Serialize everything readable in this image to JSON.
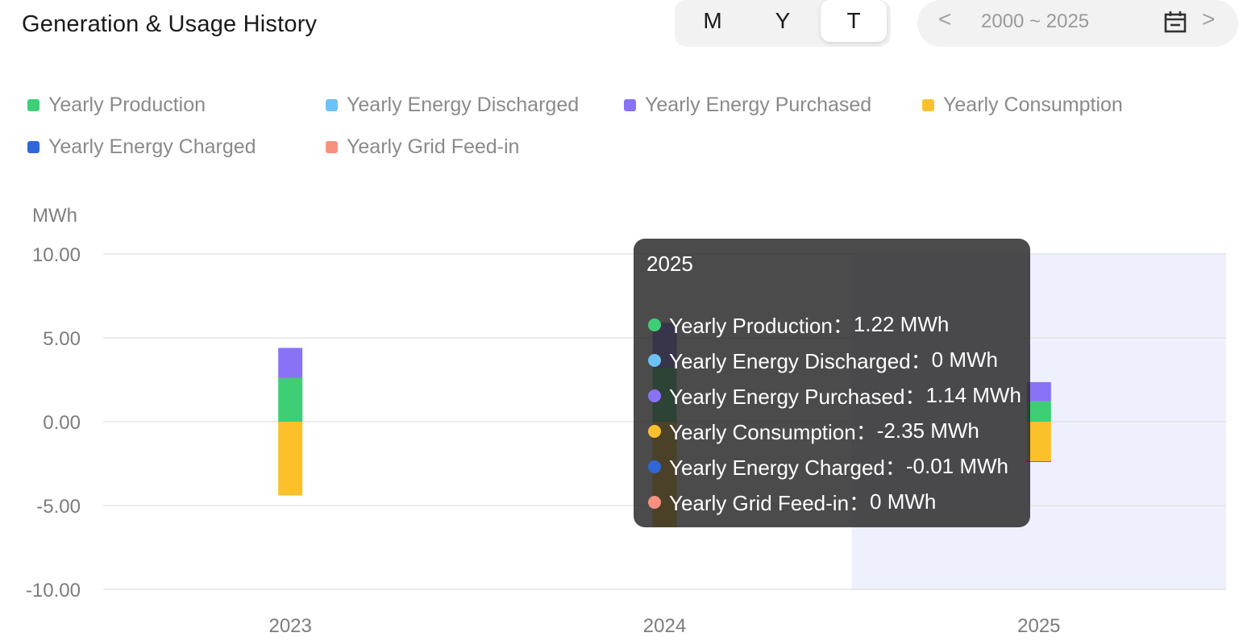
{
  "header": {
    "title": "Generation & Usage History",
    "period_tabs": [
      "M",
      "Y",
      "T"
    ],
    "active_tab": "T",
    "range_text": "2000 ~ 2025",
    "prev_symbol": "<",
    "next_symbol": ">",
    "calendar_icon": "calendar-icon"
  },
  "chart_data": {
    "type": "bar",
    "stacked": true,
    "ylabel": "MWh",
    "ylim": [
      -10,
      10
    ],
    "yticks": [
      "10.00",
      "5.00",
      "0.00",
      "-5.00",
      "-10.00"
    ],
    "yticks_values": [
      10,
      5,
      0,
      -5,
      -10
    ],
    "grid": true,
    "legend_position": "top",
    "categories": [
      "2023",
      "2024",
      "2025"
    ],
    "highlighted_category": "2025",
    "series": [
      {
        "name": "Yearly Production",
        "color": "#3ecf76",
        "values": [
          2.6,
          3.2,
          1.22
        ]
      },
      {
        "name": "Yearly Energy Discharged",
        "color": "#6cc2f5",
        "values": [
          0,
          0,
          0
        ]
      },
      {
        "name": "Yearly Energy Purchased",
        "color": "#8a72f7",
        "values": [
          1.8,
          2.7,
          1.14
        ]
      },
      {
        "name": "Yearly Consumption",
        "color": "#fcc12a",
        "values": [
          -4.4,
          -6.3,
          -2.35
        ]
      },
      {
        "name": "Yearly Energy Charged",
        "color": "#2f67d8",
        "values": [
          0,
          0,
          -0.01
        ]
      },
      {
        "name": "Yearly Grid Feed-in",
        "color": "#f7907f",
        "values": [
          0,
          0,
          0
        ]
      }
    ]
  },
  "tooltip": {
    "title": "2025",
    "rows": [
      {
        "label": "Yearly Production：",
        "value": "1.22 MWh",
        "color": "#3ecf76"
      },
      {
        "label": "Yearly Energy Discharged：",
        "value": "0 MWh",
        "color": "#6cc2f5"
      },
      {
        "label": "Yearly Energy Purchased：",
        "value": "1.14 MWh",
        "color": "#8a72f7"
      },
      {
        "label": "Yearly Consumption：",
        "value": "-2.35 MWh",
        "color": "#fcc12a"
      },
      {
        "label": "Yearly Energy Charged：",
        "value": "-0.01 MWh",
        "color": "#2f67d8"
      },
      {
        "label": "Yearly Grid Feed-in：",
        "value": "0 MWh",
        "color": "#f7907f"
      }
    ]
  }
}
